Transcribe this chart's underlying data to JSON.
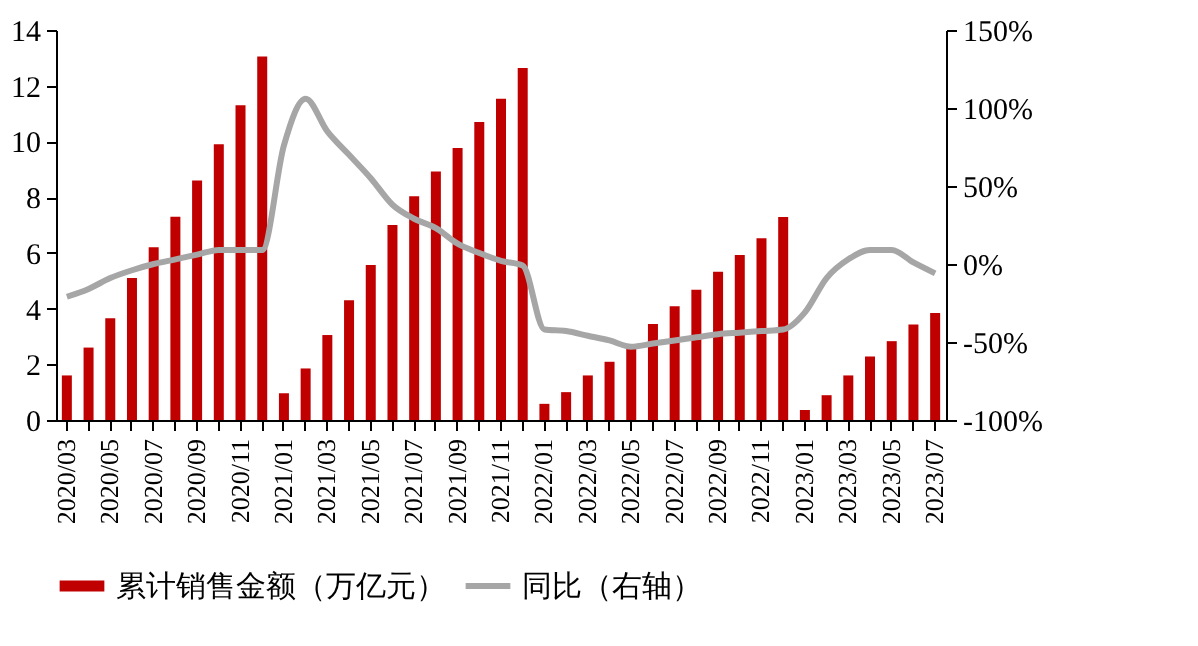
{
  "chart_data": {
    "type": "bar",
    "categories": [
      "2020/03",
      null,
      "2020/05",
      null,
      "2020/07",
      null,
      "2020/09",
      null,
      "2020/11",
      null,
      "2021/01",
      null,
      "2021/03",
      null,
      "2021/05",
      null,
      "2021/07",
      null,
      "2021/09",
      null,
      "2021/11",
      null,
      "2022/01",
      null,
      "2022/03",
      null,
      "2022/05",
      null,
      "2022/07",
      null,
      "2022/09",
      null,
      "2022/11",
      null,
      "2023/01",
      null,
      "2023/03",
      null,
      "2023/05",
      null,
      "2023/07"
    ],
    "series": [
      {
        "name": "累计销售金额（万亿元）",
        "color": "#c00000",
        "values": [
          1.6,
          2.6,
          3.65,
          5.1,
          6.2,
          7.3,
          8.6,
          9.9,
          11.3,
          13.05,
          0.96,
          1.85,
          3.05,
          4.3,
          5.56,
          7.0,
          8.03,
          8.92,
          9.76,
          10.7,
          11.53,
          12.64,
          0.58,
          1.0,
          1.6,
          2.09,
          2.57,
          3.45,
          4.08,
          4.68,
          5.32,
          5.92,
          6.52,
          7.29,
          0.36,
          0.89,
          1.6,
          2.28,
          2.83,
          3.43,
          3.84
        ]
      },
      {
        "name": "同比（右轴）",
        "color": "#a6a6a6",
        "type": "line",
        "axis": "y2",
        "values": [
          -21,
          -16,
          -9,
          -4,
          0,
          3,
          6,
          9,
          9,
          9,
          76,
          106,
          85,
          70,
          55,
          38,
          29,
          23,
          13,
          7,
          2,
          -1,
          -42,
          -43,
          -46,
          -49,
          -53,
          -51,
          -49,
          -47,
          -45,
          -44,
          -43,
          -42,
          -31,
          -9,
          3,
          9,
          9,
          1,
          -6
        ]
      }
    ],
    "ylim": [
      0,
      14
    ],
    "yticks": [
      0,
      2,
      4,
      6,
      8,
      10,
      12,
      14
    ],
    "y2lim": [
      -100,
      150
    ],
    "y2ticks": [
      {
        "value": -100,
        "label": "-100%"
      },
      {
        "value": -50,
        "label": "-50%"
      },
      {
        "value": 0,
        "label": "0%"
      },
      {
        "value": 50,
        "label": "50%"
      },
      {
        "value": 100,
        "label": "100%"
      },
      {
        "value": 150,
        "label": "150%"
      }
    ],
    "legend": "bottom",
    "grid": false
  }
}
